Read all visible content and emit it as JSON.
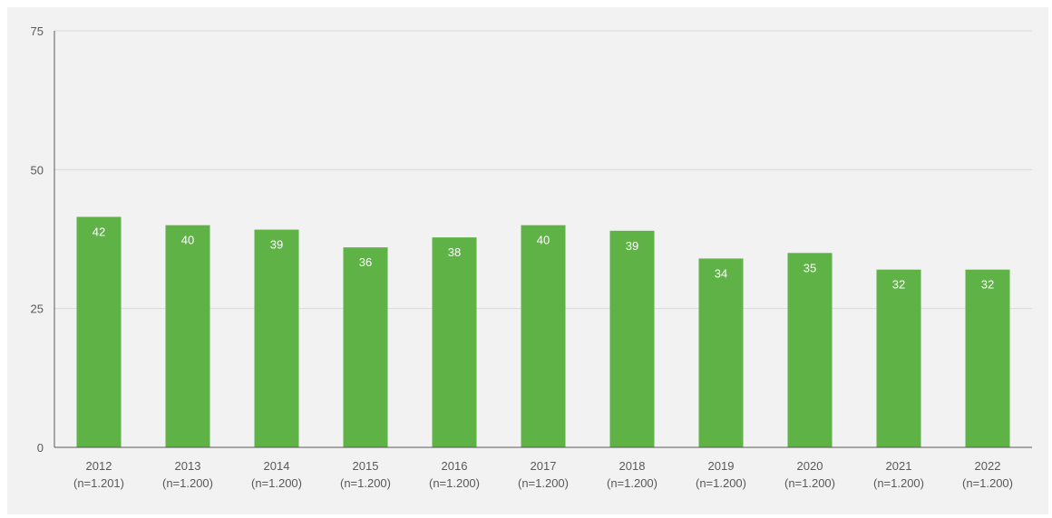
{
  "chart_data": {
    "type": "bar",
    "title": "",
    "xlabel": "",
    "ylabel": "",
    "ylim": [
      0,
      75
    ],
    "yticks": [
      0,
      25,
      50,
      75
    ],
    "grid": true,
    "legend": "none",
    "bar_color": "#5eb246",
    "categories": [
      [
        "2012",
        "(n=1.201)"
      ],
      [
        "2013",
        "(n=1.200)"
      ],
      [
        "2014",
        "(n=1.200)"
      ],
      [
        "2015",
        "(n=1.200)"
      ],
      [
        "2016",
        "(n=1.200)"
      ],
      [
        "2017",
        "(n=1.200)"
      ],
      [
        "2018",
        "(n=1.200)"
      ],
      [
        "2019",
        "(n=1.200)"
      ],
      [
        "2020",
        "(n=1.200)"
      ],
      [
        "2021",
        "(n=1.200)"
      ],
      [
        "2022",
        "(n=1.200)"
      ]
    ],
    "values": [
      41.5,
      40,
      39.2,
      36,
      37.8,
      40,
      39,
      34,
      35,
      32,
      32
    ],
    "data_labels": [
      "42",
      "40",
      "39",
      "36",
      "38",
      "40",
      "39",
      "34",
      "35",
      "32",
      "32"
    ]
  }
}
